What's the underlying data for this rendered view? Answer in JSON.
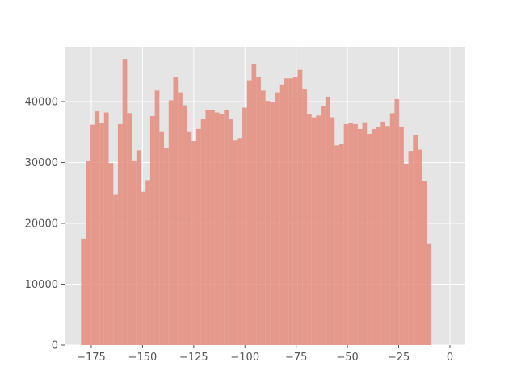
{
  "chart_data": {
    "type": "bar",
    "title": "",
    "xlabel": "",
    "ylabel": "",
    "xlim": [
      -188,
      7.5
    ],
    "ylim": [
      0,
      49000
    ],
    "grid": true,
    "bin_start": -180,
    "bin_width": 2.25,
    "x_ticks": [
      -175,
      -150,
      -125,
      -100,
      -75,
      -50,
      -25,
      0
    ],
    "x_tick_labels": [
      "−175",
      "−150",
      "−125",
      "−100",
      "−75",
      "−50",
      "−25",
      "0"
    ],
    "y_ticks": [
      0,
      10000,
      20000,
      30000,
      40000
    ],
    "y_tick_labels": [
      "0",
      "10000",
      "20000",
      "30000",
      "40000"
    ],
    "values": [
      17500,
      30200,
      36200,
      38400,
      36500,
      38200,
      29900,
      24700,
      36300,
      47000,
      38100,
      30200,
      32000,
      25200,
      27100,
      37600,
      41800,
      35000,
      32400,
      40200,
      44100,
      41500,
      39400,
      35000,
      33500,
      35500,
      37100,
      38600,
      38600,
      38200,
      37900,
      38600,
      37200,
      33600,
      34000,
      39000,
      43500,
      46200,
      44000,
      41800,
      40100,
      40000,
      41500,
      42800,
      43800,
      43800,
      44000,
      45200,
      42100,
      38000,
      37400,
      37700,
      39200,
      40800,
      37400,
      32800,
      33000,
      36300,
      36500,
      36300,
      35500,
      36600,
      34700,
      35500,
      35800,
      36700,
      36000,
      38100,
      40400,
      35900,
      29700,
      31900,
      34500,
      32100,
      26900,
      16600
    ],
    "colors": {
      "bar": "#e48c7c",
      "plot_background": "#e5e5e5",
      "grid": "#ffffff",
      "tick_text": "#555555"
    }
  }
}
